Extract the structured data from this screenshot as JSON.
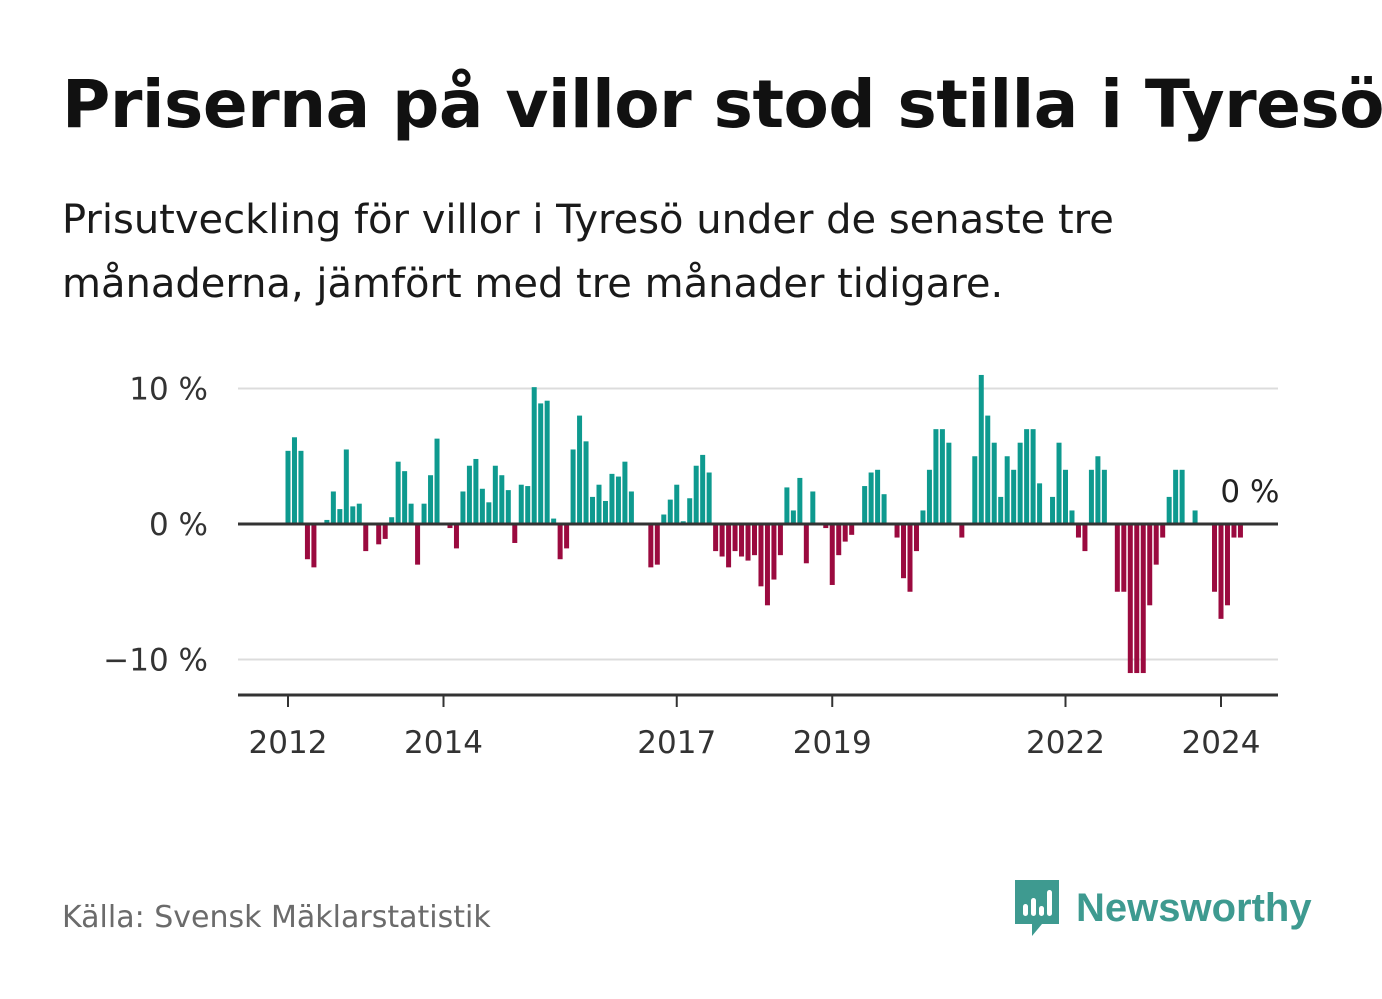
{
  "title": "Priserna på villor stod stilla i Tyresö",
  "subtitle": "Prisutveckling för villor i Tyresö under de senaste tre månaderna, jämfört med tre månader tidigare.",
  "source": "Källa: Svensk Mäklarstatistik",
  "brand": {
    "name": "Newsworthy",
    "icon": "newsworthy-logo-icon",
    "color": "#3e9a90"
  },
  "colors": {
    "positive": "#0e9a8f",
    "negative": "#9b0a3f",
    "grid": "#dcdcdc",
    "axis": "#333333"
  },
  "chart_data": {
    "type": "bar",
    "title": "Priserna på villor stod stilla i Tyresö",
    "xlabel": "",
    "ylabel": "",
    "ylim": [
      -12.7,
      10.3
    ],
    "y_ticks": [
      {
        "value": 10,
        "label": "10 %"
      },
      {
        "value": 0,
        "label": "0 %"
      },
      {
        "value": -10,
        "label": "−10 %"
      }
    ],
    "x_ticks": [
      {
        "value": 2012.0,
        "label": "2012"
      },
      {
        "value": 2014.0,
        "label": "2014"
      },
      {
        "value": 2017.0,
        "label": "2017"
      },
      {
        "value": 2019.0,
        "label": "2019"
      },
      {
        "value": 2022.0,
        "label": "2022"
      },
      {
        "value": 2024.0,
        "label": "2024"
      }
    ],
    "x_start": 2012.0,
    "x_step_years": 0.0833333,
    "values": [
      5.4,
      6.4,
      5.4,
      -2.6,
      -3.2,
      0,
      0.3,
      2.4,
      1.1,
      5.5,
      1.3,
      1.5,
      -2.0,
      0,
      -1.5,
      -1.1,
      0.5,
      4.6,
      3.9,
      1.5,
      -3.0,
      1.5,
      3.6,
      6.3,
      0,
      -0.3,
      -1.8,
      2.4,
      4.3,
      4.8,
      2.6,
      1.6,
      4.3,
      3.6,
      2.5,
      -1.4,
      2.9,
      2.8,
      10.1,
      8.9,
      9.1,
      0.4,
      -2.6,
      -1.8,
      5.5,
      8.0,
      6.1,
      2.0,
      2.9,
      1.7,
      3.7,
      3.5,
      4.6,
      2.4,
      0,
      0,
      -3.2,
      -3.0,
      0.7,
      1.8,
      2.9,
      0.2,
      1.9,
      4.3,
      5.1,
      3.8,
      -2.0,
      -2.4,
      -3.2,
      -2.0,
      -2.4,
      -2.7,
      -2.3,
      -4.6,
      -6.0,
      -4.1,
      -2.3,
      2.7,
      1.0,
      3.4,
      -2.9,
      2.4,
      0,
      -0.3,
      -4.5,
      -2.3,
      -1.3,
      -0.8,
      0,
      2.8,
      3.8,
      4.0,
      2.2,
      0,
      -1.0,
      -4.0,
      -5.0,
      -2.0,
      1.0,
      4.0,
      7.0,
      7.0,
      6.0,
      0,
      -1.0,
      0,
      5.0,
      11.0,
      8.0,
      6.0,
      2.0,
      5.0,
      4.0,
      6.0,
      7.0,
      7.0,
      3.0,
      0,
      2.0,
      6.0,
      4.0,
      1.0,
      -1.0,
      -2.0,
      4.0,
      5.0,
      4.0,
      0,
      -5.0,
      -5.0,
      -11.0,
      -11.0,
      -11.0,
      -6.0,
      -3.0,
      -1.0,
      2.0,
      4.0,
      4.0,
      0,
      1.0,
      0,
      0,
      -5.0,
      -7.0,
      -6.0,
      -1.0,
      -1.0,
      0
    ],
    "annotations": [
      {
        "label": "0 %",
        "value": 0
      }
    ]
  }
}
